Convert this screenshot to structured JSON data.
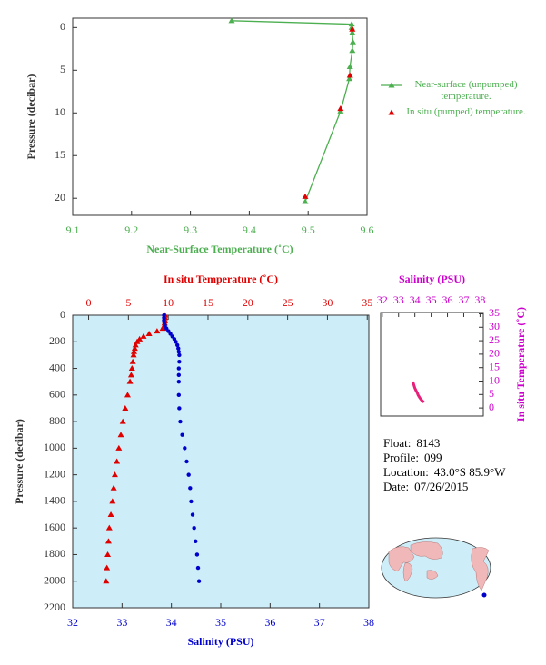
{
  "chart_data": [
    {
      "type": "scatter",
      "xlabel": "Near-Surface Temperature (˚C)",
      "ylabel": "Pressure (decibar)",
      "xlim": [
        9.1,
        9.6
      ],
      "xticks": [
        9.1,
        9.2,
        9.3,
        9.4,
        9.5,
        9.6
      ],
      "ylim": [
        22,
        -1.1
      ],
      "yticks": [
        0,
        5,
        10,
        15,
        20
      ],
      "xaxis_color": "#4caf50",
      "yaxis_color": "#333333",
      "legend": "right",
      "series": [
        {
          "name": "Near-surface (unpumped) temperature.",
          "color": "#4caf50",
          "line": true,
          "marker": "triangle",
          "x": [
            9.37,
            9.574,
            9.574,
            9.575,
            9.576,
            9.575,
            9.571,
            9.57,
            9.555,
            9.495
          ],
          "values": [
            -0.8,
            -0.4,
            0,
            0.6,
            1.7,
            2.7,
            4.6,
            6.0,
            9.8,
            20.4
          ]
        },
        {
          "name": "In situ (pumped) temperature.",
          "color": "#e00000",
          "line": false,
          "marker": "triangle",
          "x": [
            9.575,
            9.571,
            9.555,
            9.495
          ],
          "values": [
            0.2,
            5.6,
            9.5,
            19.8
          ]
        }
      ]
    },
    {
      "type": "scatter",
      "xlabel": "Salinity (PSU)",
      "x2label": "In situ Temperature (˚C)",
      "ylabel": "Pressure (decibar)",
      "xlim": [
        32,
        38
      ],
      "xticks": [
        32,
        33,
        34,
        35,
        36,
        37,
        38
      ],
      "x2lim": [
        -2,
        35.2
      ],
      "x2ticks": [
        0,
        5,
        10,
        15,
        20,
        25,
        30,
        35
      ],
      "ylim": [
        2200,
        0
      ],
      "yticks": [
        0,
        200,
        400,
        600,
        800,
        1000,
        1200,
        1400,
        1600,
        1800,
        2000,
        2200
      ],
      "xaxis_color": "#0000cc",
      "x2axis_color": "#e00000",
      "yaxis_color": "#333333",
      "background": "#cdeef8",
      "series": [
        {
          "color": "#e00000",
          "axis": "x2",
          "line": false,
          "marker": "triangle",
          "x": [
            9.6,
            9.6,
            9.6,
            9.55,
            9.5,
            9.3,
            8.6,
            7.6,
            6.9,
            6.4,
            6.1,
            5.9,
            5.8,
            5.7,
            5.65,
            5.55,
            5.45,
            5.35,
            5.2,
            4.9,
            4.6,
            4.3,
            4.05,
            3.8,
            3.55,
            3.3,
            3.15,
            3.0,
            2.8,
            2.6,
            2.5,
            2.4,
            2.3,
            2.2
          ],
          "values": [
            0,
            20,
            40,
            60,
            80,
            100,
            120,
            140,
            160,
            180,
            200,
            225,
            250,
            275,
            300,
            350,
            400,
            450,
            500,
            600,
            700,
            800,
            900,
            1000,
            1100,
            1200,
            1300,
            1400,
            1500,
            1600,
            1700,
            1800,
            1900,
            2000
          ]
        },
        {
          "color": "#0000cc",
          "line": false,
          "marker": "circle",
          "x": [
            33.85,
            33.85,
            33.85,
            33.86,
            33.87,
            33.9,
            33.94,
            33.98,
            34.02,
            34.06,
            34.09,
            34.12,
            34.14,
            34.15,
            34.16,
            34.16,
            34.15,
            34.15,
            34.15,
            34.15,
            34.16,
            34.18,
            34.22,
            34.27,
            34.31,
            34.35,
            34.38,
            34.4,
            34.43,
            34.46,
            34.49,
            34.52,
            34.54,
            34.56
          ],
          "values": [
            0,
            20,
            40,
            60,
            80,
            100,
            120,
            140,
            160,
            180,
            200,
            225,
            250,
            275,
            300,
            350,
            400,
            450,
            500,
            600,
            700,
            800,
            900,
            1000,
            1100,
            1200,
            1300,
            1400,
            1500,
            1600,
            1700,
            1800,
            1900,
            2000
          ]
        }
      ]
    },
    {
      "type": "scatter",
      "xlabel": "Salinity (PSU)",
      "ylabel": "In situ Temperature (˚C)",
      "xlim": [
        31.9,
        38.2
      ],
      "xticks": [
        32,
        33,
        34,
        35,
        36,
        37,
        38
      ],
      "ylim": [
        -3,
        35.5
      ],
      "yticks": [
        0,
        5,
        10,
        15,
        20,
        25,
        30,
        35
      ],
      "xaxis_position": "top",
      "yaxis_position": "right",
      "xaxis_color": "#cc00cc",
      "yaxis_color": "#cc00cc",
      "series": [
        {
          "color": "#e8207a",
          "line": true,
          "marker": "none",
          "x": [
            33.85,
            33.9,
            34.0,
            34.1,
            34.15,
            34.16,
            34.2,
            34.3,
            34.4,
            34.5,
            34.56
          ],
          "values": [
            9.6,
            9.3,
            7.4,
            6.1,
            5.7,
            5.4,
            4.8,
            3.8,
            3.0,
            2.4,
            2.2
          ]
        }
      ]
    }
  ],
  "info": [
    {
      "label": "Float:",
      "value": "8143"
    },
    {
      "label": "Profile:",
      "value": "099"
    },
    {
      "label": "Location:",
      "value": "43.0°S  85.9°W"
    },
    {
      "label": "Date:",
      "value": "07/26/2015"
    }
  ]
}
